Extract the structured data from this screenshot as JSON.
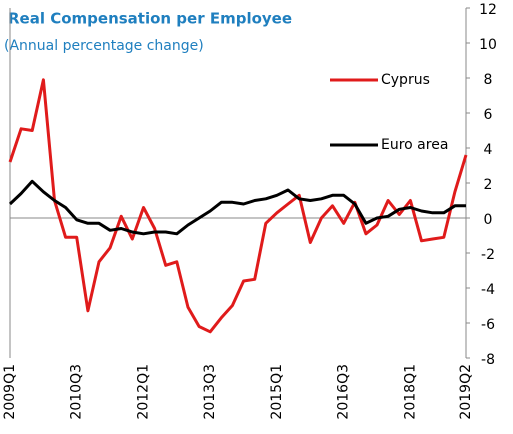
{
  "chart_data": {
    "type": "line",
    "title": "Real Compensation per Employee",
    "subtitle": "(Annual percentage change)",
    "categories": [
      "2009Q1",
      null,
      null,
      null,
      null,
      null,
      "2010Q3",
      null,
      null,
      null,
      null,
      null,
      "2012Q1",
      null,
      null,
      null,
      null,
      null,
      "2013Q3",
      null,
      null,
      null,
      null,
      null,
      "2015Q1",
      null,
      null,
      null,
      null,
      null,
      "2016Q3",
      null,
      null,
      null,
      null,
      null,
      "2018Q1",
      null,
      null,
      null,
      null,
      "2019Q2"
    ],
    "series": [
      {
        "name": "Cyprus",
        "color": "#e01b1b",
        "values": [
          3.2,
          5.1,
          5.0,
          7.9,
          1.0,
          -1.1,
          -1.1,
          -5.3,
          -2.5,
          -1.7,
          0.1,
          -1.2,
          0.6,
          -0.6,
          -2.7,
          -2.5,
          -5.1,
          -6.2,
          -6.5,
          -5.7,
          -5.0,
          -3.6,
          -3.5,
          -0.3,
          0.3,
          0.8,
          1.3,
          -1.4,
          0.0,
          0.7,
          -0.3,
          0.9,
          -0.9,
          -0.4,
          1.0,
          0.2,
          1.0,
          -1.3,
          -1.2,
          -1.1,
          1.5,
          3.6
        ]
      },
      {
        "name": "Euro area",
        "color": "#000000",
        "values": [
          0.8,
          1.4,
          2.1,
          1.5,
          1.0,
          0.6,
          -0.1,
          -0.3,
          -0.3,
          -0.7,
          -0.6,
          -0.8,
          -0.9,
          -0.8,
          -0.8,
          -0.9,
          -0.4,
          0.0,
          0.4,
          0.9,
          0.9,
          0.8,
          1.0,
          1.1,
          1.3,
          1.6,
          1.1,
          1.0,
          1.1,
          1.3,
          1.3,
          0.8,
          -0.3,
          0.0,
          0.1,
          0.5,
          0.6,
          0.4,
          0.3,
          0.3,
          0.7,
          0.7
        ]
      }
    ],
    "ylim": [
      -8,
      12
    ],
    "yticks": [
      -8,
      -6,
      -4,
      -2,
      0,
      2,
      4,
      6,
      8,
      10,
      12
    ],
    "y_axis_side": "right",
    "grid": false
  }
}
